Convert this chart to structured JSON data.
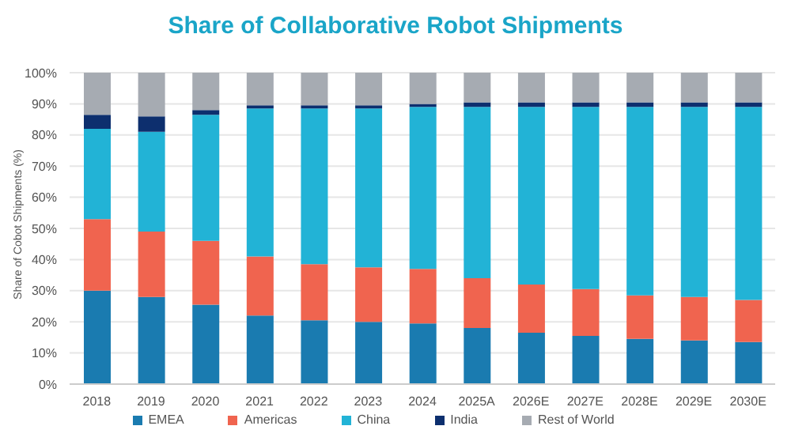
{
  "chart_data": {
    "type": "bar",
    "title": "Share of Collaborative Robot Shipments",
    "ylabel": "Share of Cobot Shipments (%)",
    "stacked": true,
    "grid": "y",
    "legend": "bottom",
    "categories": [
      "2018",
      "2019",
      "2020",
      "2021",
      "2022",
      "2023",
      "2024",
      "2025A",
      "2026E",
      "2027E",
      "2028E",
      "2029E",
      "2030E"
    ],
    "ylim": [
      0,
      100
    ],
    "yticks": [
      {
        "value": 0,
        "label": "0%"
      },
      {
        "value": 10,
        "label": "10%"
      },
      {
        "value": 20,
        "label": "20%"
      },
      {
        "value": 30,
        "label": "30%"
      },
      {
        "value": 40,
        "label": "40%"
      },
      {
        "value": 50,
        "label": "50%"
      },
      {
        "value": 60,
        "label": "60%"
      },
      {
        "value": 70,
        "label": "70%"
      },
      {
        "value": 80,
        "label": "80%"
      },
      {
        "value": 90,
        "label": "90%"
      },
      {
        "value": 100,
        "label": "100%"
      }
    ],
    "series": [
      {
        "name": "EMEA",
        "color": "#1a7bb0",
        "values": [
          30,
          28,
          25.5,
          22,
          20.5,
          20,
          19.5,
          18,
          16.5,
          15.5,
          14.5,
          14,
          13.5
        ]
      },
      {
        "name": "Americas",
        "color": "#f0644f",
        "values": [
          23,
          21,
          20.5,
          19,
          18,
          17.5,
          17.5,
          16,
          15.5,
          15,
          14,
          14,
          13.5
        ]
      },
      {
        "name": "China",
        "color": "#22b3d6",
        "values": [
          29,
          32,
          40.5,
          47.5,
          50,
          51,
          52,
          55,
          57,
          58.5,
          60.5,
          61,
          62
        ]
      },
      {
        "name": "India",
        "color": "#0d2f6e",
        "values": [
          4.5,
          5,
          1.5,
          1,
          1,
          1,
          1,
          1.5,
          1.5,
          1.5,
          1.5,
          1.5,
          1.5
        ]
      },
      {
        "name": "Rest of World",
        "color": "#a6abb2",
        "values": [
          13.5,
          14,
          12,
          10.5,
          10.5,
          10.5,
          10,
          9.5,
          9.5,
          9.5,
          9.5,
          9.5,
          9.5
        ]
      }
    ]
  }
}
